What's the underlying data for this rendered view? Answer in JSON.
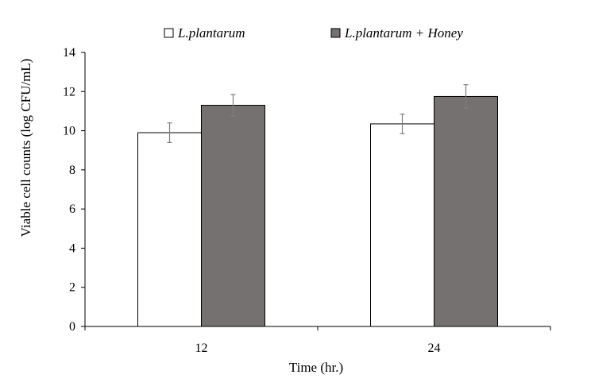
{
  "chart_data": {
    "type": "bar",
    "title": "",
    "xlabel": "Time (hr.)",
    "ylabel": "Viable cell counts (log CFU/mL)",
    "ylim": [
      0,
      14
    ],
    "yticks": [
      0,
      2,
      4,
      6,
      8,
      10,
      12,
      14
    ],
    "categories": [
      "12",
      "24"
    ],
    "series": [
      {
        "name": "L.plantarum",
        "values": [
          9.9,
          10.35
        ],
        "errors": [
          0.5,
          0.5
        ],
        "color": "#ffffff"
      },
      {
        "name": "L.plantarum + Honey",
        "values": [
          11.3,
          11.75
        ],
        "errors": [
          0.55,
          0.6
        ],
        "color": "#767171"
      }
    ],
    "legend_position": "top",
    "grid": false
  }
}
